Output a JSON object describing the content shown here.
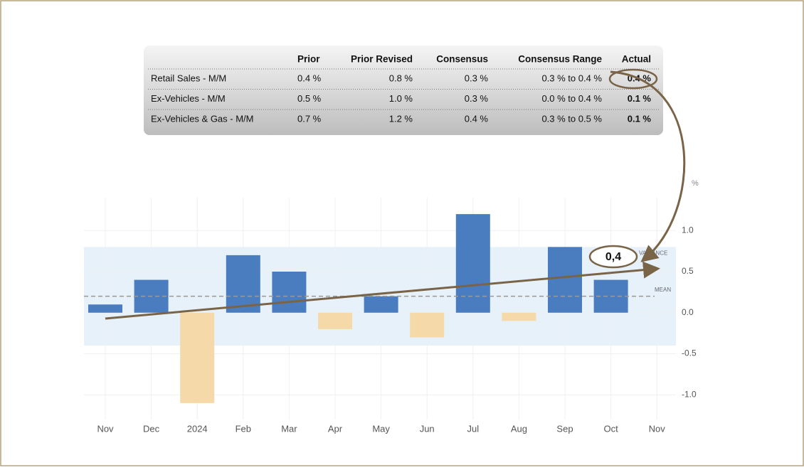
{
  "table": {
    "columns": [
      "Prior",
      "Prior Revised",
      "Consensus",
      "Consensus Range",
      "Actual"
    ],
    "rows": [
      [
        "Retail Sales - M/M",
        "0.4 %",
        "0.8 %",
        "0.3 %",
        "0.3 % to 0.4 %",
        "0.4 %"
      ],
      [
        "Ex-Vehicles - M/M",
        "0.5 %",
        "1.0 %",
        "0.3 %",
        "0.0 % to 0.4 %",
        "0.1 %"
      ],
      [
        "Ex-Vehicles & Gas - M/M",
        "0.7 %",
        "1.2 %",
        "0.4 %",
        "0.3 % to 0.5 %",
        "0.1 %"
      ]
    ]
  },
  "chart_data": {
    "type": "bar",
    "unit_label": "%",
    "categories": [
      "Nov",
      "Dec",
      "2024",
      "Feb",
      "Mar",
      "Apr",
      "May",
      "Jun",
      "Jul",
      "Aug",
      "Sep",
      "Oct",
      "Nov"
    ],
    "values": [
      0.1,
      0.4,
      -1.1,
      0.7,
      0.5,
      -0.2,
      0.2,
      -0.3,
      1.2,
      -0.1,
      0.8,
      0.4,
      null
    ],
    "positive_color": "#4a7cc0",
    "negative_color": "#f5d9a8",
    "ylim": [
      -1.3,
      1.4
    ],
    "yticks": [
      {
        "value": -1,
        "label": "-1.0"
      },
      -0.5,
      {
        "value": 0,
        "label": "0.0"
      },
      0.5,
      {
        "value": 1,
        "label": "1.0"
      }
    ],
    "grid": true,
    "variance_band": [
      -0.4,
      0.8
    ],
    "variance_label": "VARIANCE",
    "mean": 0.2,
    "mean_label": "MEAN",
    "annotation": "0,4"
  }
}
